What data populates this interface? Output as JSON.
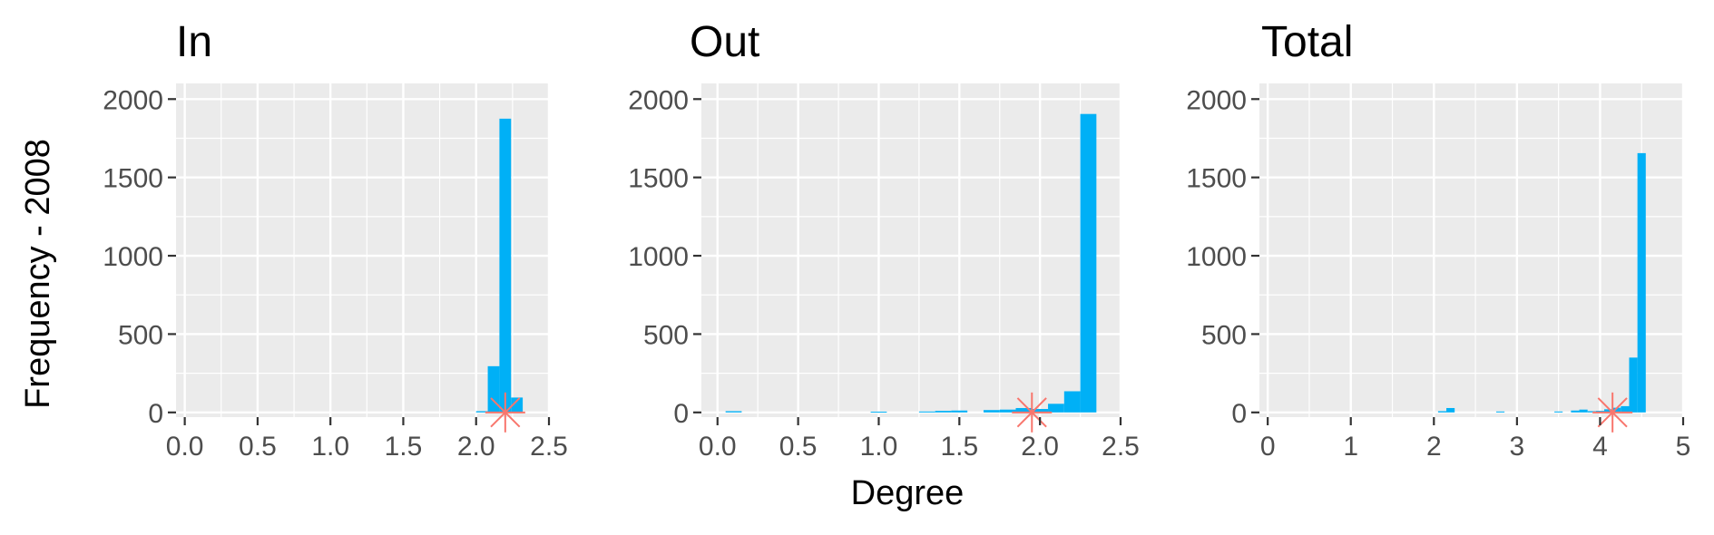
{
  "chart_data": {
    "type": "bar",
    "shared_ylabel": "Frequency - 2008",
    "shared_xlabel": "Degree",
    "colors": {
      "bar": "#00b0f6",
      "marker": "#f8766d",
      "panel_bg": "#ebebeb",
      "grid": "#ffffff"
    },
    "marker_shape": "asterisk",
    "grid": true,
    "panels": [
      {
        "title": "In",
        "xlim": [
          -0.06,
          2.5
        ],
        "ylim": [
          -30,
          2100
        ],
        "xticks": [
          0,
          0.5,
          1,
          1.5,
          2,
          2.5
        ],
        "xtick_labels": [
          "0.0",
          "0.5",
          "1.0",
          "1.5",
          "2.0",
          "2.5"
        ],
        "yticks": [
          0,
          500,
          1000,
          1500,
          2000
        ],
        "ytick_labels": [
          "0",
          "500",
          "1000",
          "1500",
          "2000"
        ],
        "bin_width": 0.08,
        "bars": [
          {
            "x": 2.04,
            "y": 8
          },
          {
            "x": 2.12,
            "y": 295
          },
          {
            "x": 2.2,
            "y": 1875
          },
          {
            "x": 2.28,
            "y": 95
          }
        ],
        "marker": {
          "x": 2.2,
          "y": 0
        }
      },
      {
        "title": "Out",
        "xlim": [
          -0.1,
          2.5
        ],
        "ylim": [
          -30,
          2100
        ],
        "xticks": [
          0,
          0.5,
          1,
          1.5,
          2,
          2.5
        ],
        "xtick_labels": [
          "0.0",
          "0.5",
          "1.0",
          "1.5",
          "2.0",
          "2.5"
        ],
        "yticks": [
          0,
          500,
          1000,
          1500,
          2000
        ],
        "ytick_labels": [
          "0",
          "500",
          "1000",
          "1500",
          "2000"
        ],
        "bin_width": 0.1,
        "bars": [
          {
            "x": 0.1,
            "y": 8
          },
          {
            "x": 1.0,
            "y": 5
          },
          {
            "x": 1.3,
            "y": 6
          },
          {
            "x": 1.4,
            "y": 10
          },
          {
            "x": 1.5,
            "y": 12
          },
          {
            "x": 1.7,
            "y": 15
          },
          {
            "x": 1.8,
            "y": 18
          },
          {
            "x": 1.9,
            "y": 28
          },
          {
            "x": 2.0,
            "y": 22
          },
          {
            "x": 2.1,
            "y": 55
          },
          {
            "x": 2.2,
            "y": 135
          },
          {
            "x": 2.3,
            "y": 1905
          }
        ],
        "marker": {
          "x": 1.95,
          "y": 0
        }
      },
      {
        "title": "Total",
        "xlim": [
          -0.1,
          5.0
        ],
        "ylim": [
          -30,
          2100
        ],
        "xticks": [
          0,
          1,
          2,
          3,
          4,
          5
        ],
        "xtick_labels": [
          "0",
          "1",
          "2",
          "3",
          "4",
          "5"
        ],
        "yticks": [
          0,
          500,
          1000,
          1500,
          2000
        ],
        "ytick_labels": [
          "0",
          "500",
          "1000",
          "1500",
          "2000"
        ],
        "bin_width": 0.1,
        "bars": [
          {
            "x": 2.1,
            "y": 8
          },
          {
            "x": 2.2,
            "y": 28
          },
          {
            "x": 2.8,
            "y": 6
          },
          {
            "x": 3.5,
            "y": 6
          },
          {
            "x": 3.7,
            "y": 12
          },
          {
            "x": 3.8,
            "y": 18
          },
          {
            "x": 3.9,
            "y": 8
          },
          {
            "x": 4.0,
            "y": 10
          },
          {
            "x": 4.1,
            "y": 20
          },
          {
            "x": 4.2,
            "y": 30
          },
          {
            "x": 4.3,
            "y": 40
          },
          {
            "x": 4.4,
            "y": 350
          },
          {
            "x": 4.5,
            "y": 1655
          }
        ],
        "marker": {
          "x": 4.15,
          "y": 0
        }
      }
    ]
  }
}
